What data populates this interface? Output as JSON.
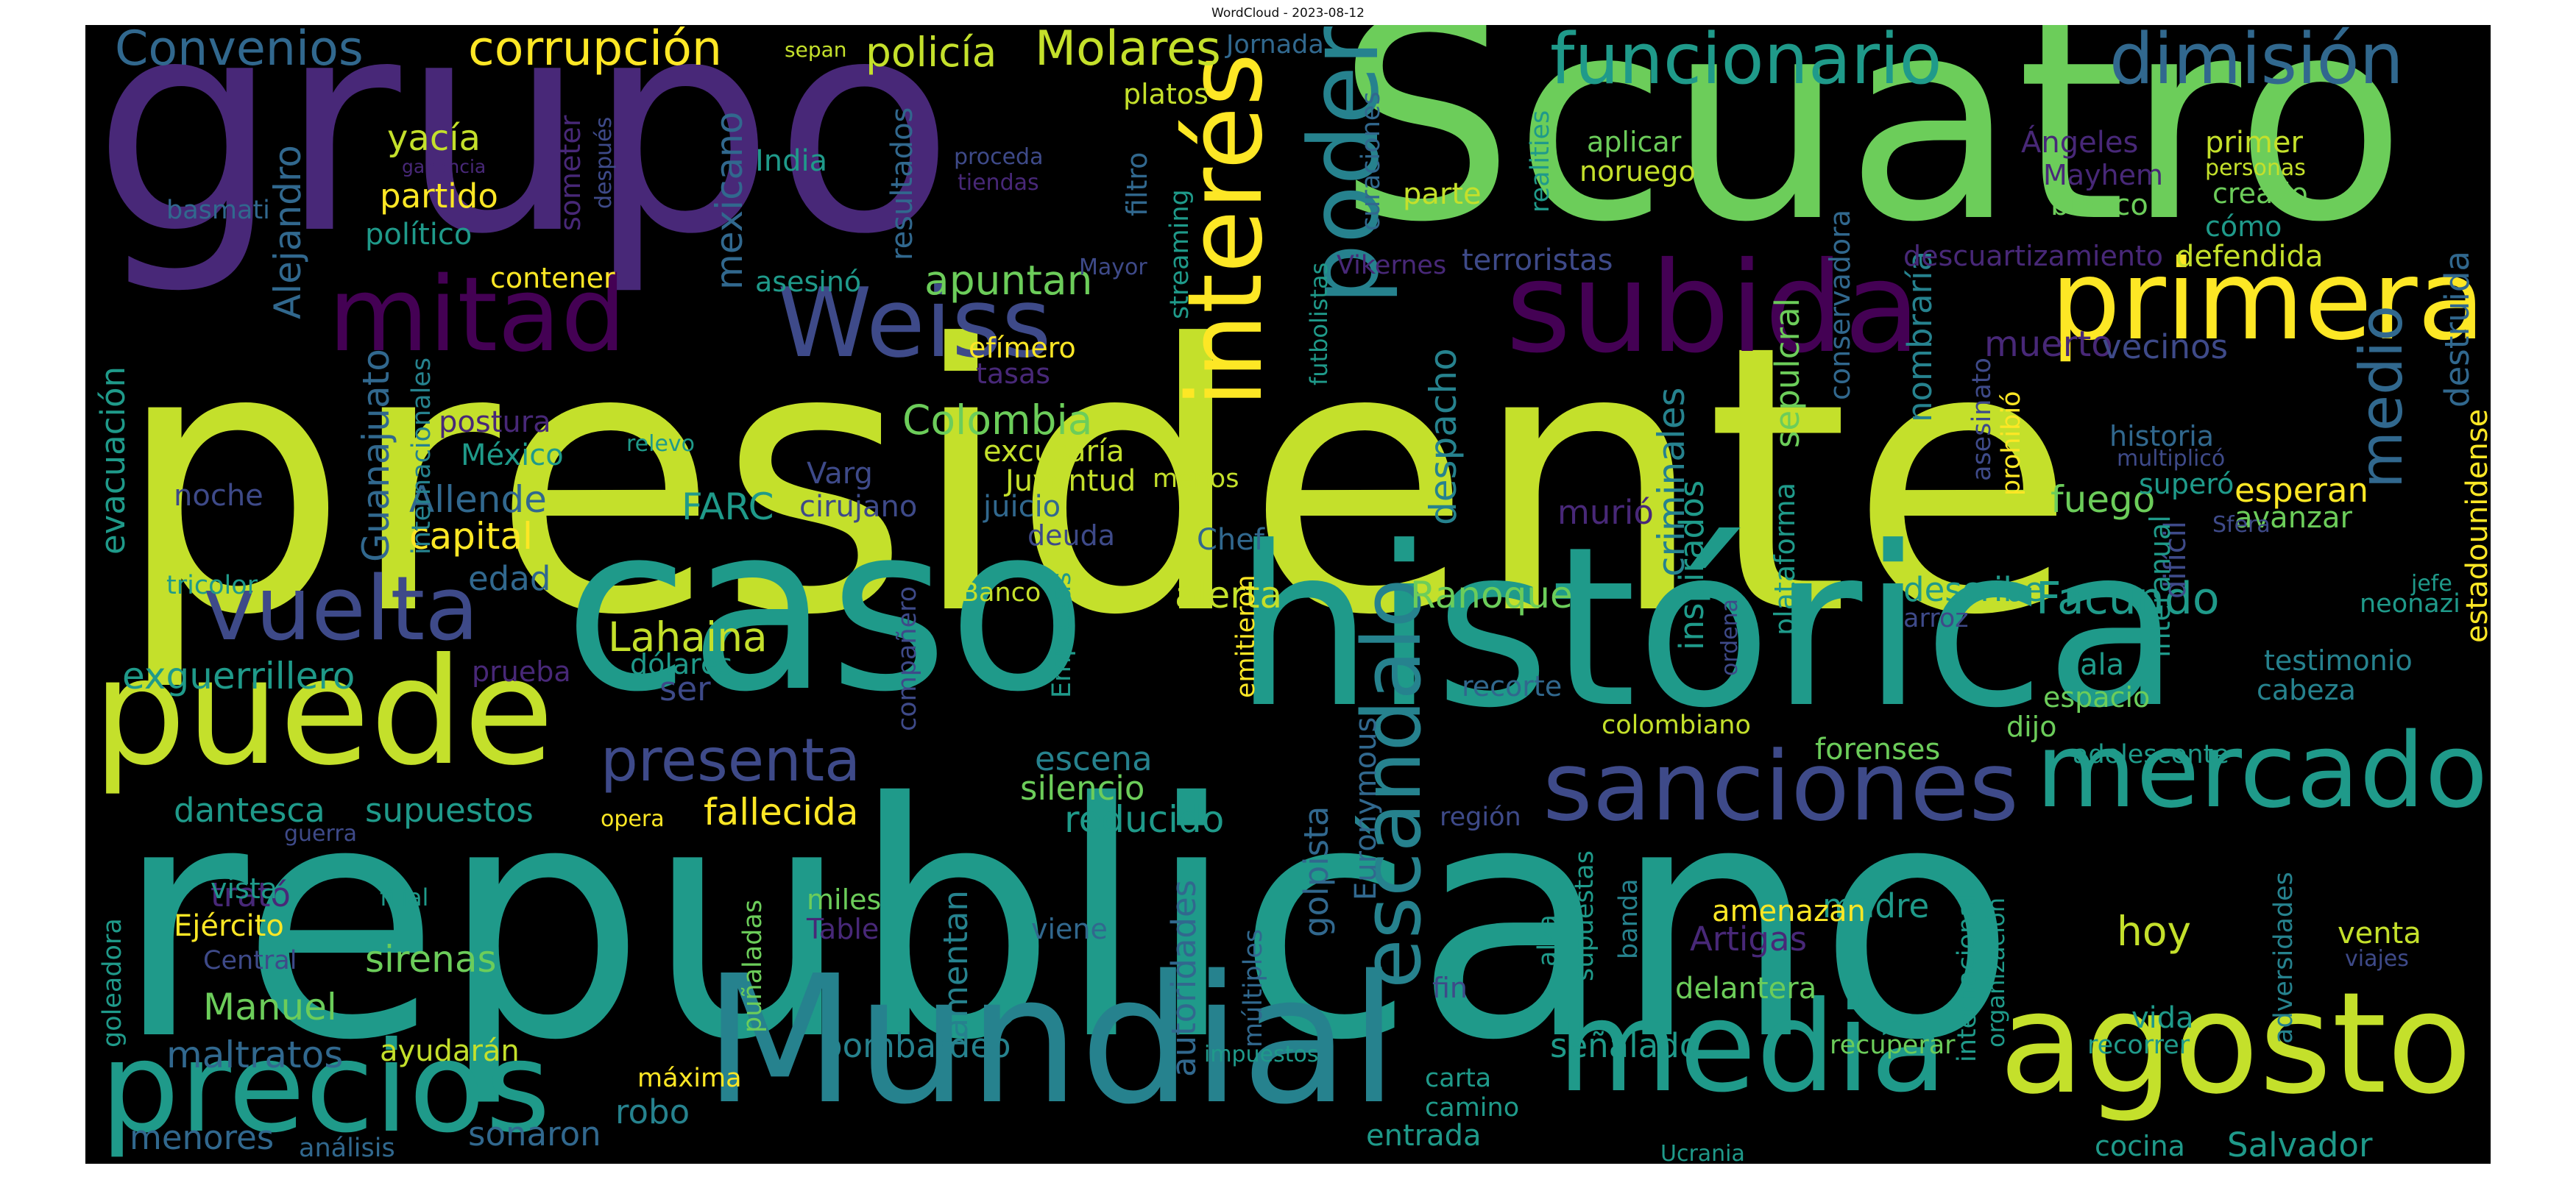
{
  "header": {
    "title": "WordCloud - 2023-08-12"
  },
  "palette": {
    "yellow_green": "#c4e02b",
    "green": "#6ccd5a",
    "teal": "#1f9a8a",
    "blue_teal": "#26828e",
    "blue": "#31688e",
    "indigo": "#3e4a89",
    "purple": "#482878",
    "dark_purple": "#440154",
    "yellow": "#fde725",
    "background": "#000000"
  },
  "words": {
    "presidente": "presidente",
    "republicano": "republicano",
    "grupo": "grupo",
    "scuatro": "Scuatro",
    "caso": "caso",
    "historica": "histórica",
    "mundial": "Mundial",
    "puede": "puede",
    "agosto": "agosto",
    "media": "media",
    "precios": "precios",
    "mitad": "mitad",
    "subida": "subida",
    "primera": "primera",
    "sanciones": "sanciones",
    "mercado": "mercado",
    "interes": "interés",
    "poder": "poder",
    "weiss": "Weiss",
    "vuelta": "vuelta",
    "funcionario": "funcionario",
    "dimision": "dimisión",
    "escandalo": "escándalo",
    "presenta": "presenta",
    "corrupcion": "corrupción",
    "convenios": "Convenios",
    "molares": "Molares",
    "policia": "policía",
    "facundo": "Facundo",
    "lahaina": "Lahaina",
    "medio": "medio",
    "colombia": "Colombia",
    "apuntan": "apuntan",
    "alejandro": "Alejandro",
    "guanajuato": "Guanajuato",
    "despacho": "despacho",
    "criminales": "criminales",
    "ranoque": "Ranoque",
    "alerta": "alerta",
    "mexicano": "mexicano",
    "manuel": "Manuel",
    "sirenas": "sirenas",
    "fallecida": "fallecida",
    "reducido": "reducido",
    "silencio": "silencio",
    "escena": "escena",
    "exguerrillero": "exguerrillero",
    "capital": "capital",
    "allende": "Allende",
    "mexico": "México",
    "postura": "postura",
    "evacuacion": "evacuación",
    "dantesca": "dantesca",
    "supuestos": "supuestos",
    "trato": "trató",
    "ejercito": "Ejército",
    "central": "Central",
    "maltratos": "maltratos",
    "menores": "menores",
    "analisis": "análisis",
    "sonaron": "sonaron",
    "ayudaran": "ayudarán",
    "maxima": "máxima",
    "robo": "robo",
    "bombardeo": "bombardeo",
    "lamentan": "lamentan",
    "autoridades": "autoridades",
    "golpista": "golpista",
    "euronymous": "Euronymous",
    "senalado": "señalado",
    "carta": "carta",
    "camino": "camino",
    "entrada": "entrada",
    "hoy": "hoy",
    "salvador": "Salvador",
    "vida": "vida",
    "recorrer": "recorrer",
    "recuperar": "recuperar",
    "madre": "madre",
    "artigas": "Artigas",
    "amenazan": "amenazan",
    "delantera": "delantera",
    "fuego": "fuego",
    "esperan": "esperan",
    "avanzar": "avanzar",
    "destruida": "destruida",
    "testimonio": "testimonio",
    "cabeza": "cabeza",
    "estadounidense": "estadounidense",
    "neonazi": "neonazi",
    "jefe": "jefe",
    "historia": "historia",
    "multiplico": "multiplicó",
    "supero": "superó",
    "nombraria": "nombraría",
    "asesinato": "asesinato",
    "prohibio": "prohibió",
    "sepulcral": "sepulcral",
    "describe": "describe",
    "arroz": "arroz",
    "dificil": "difícil",
    "interanual": "interanual",
    "espacio": "espacio",
    "ala": "ala",
    "dijo": "dijo",
    "adolescente": "adolescente",
    "forenses": "forenses",
    "colombiano": "colombiano",
    "inspirados": "inspirados",
    "plataforma": "plataforma",
    "ordena": "ordena",
    "recorte": "recorte",
    "murio": "murió",
    "yacia": "yacía",
    "partido": "partido",
    "politico": "político",
    "contener": "contener",
    "basmati": "basmati",
    "ganancia": "ganancia",
    "someter": "someter",
    "despues": "después",
    "india": "India",
    "resultados": "resultados",
    "asesino": "asesinó",
    "proceda": "proceda",
    "tiendas": "tiendas",
    "sepan": "sepan",
    "jornada": "Jornada",
    "platos": "platos",
    "filtro": "filtro",
    "streaming": "streaming",
    "mayor": "Mayor",
    "futbolistas": "futbolistas",
    "curaciones": "curaciones",
    "vikernes": "Vikernes",
    "realities": "realities",
    "parte": "parte",
    "aplicar": "aplicar",
    "noruego": "noruego",
    "terroristas": "terroristas",
    "conservadora": "conservadora",
    "angeles": "Ángeles",
    "mayhem": "Mayhem",
    "blanco": "blanco",
    "primer": "primer",
    "personas": "personas",
    "creado": "creado",
    "como": "cómo",
    "descuartizamiento": "descuartizamiento",
    "defendida": "defendida",
    "muerto": "muerto",
    "vecinos": "vecinos",
    "efimero": "efímero",
    "tasas": "tasas",
    "excusaria": "excusaría",
    "juventud": "Juventud",
    "varg": "Varg",
    "farc": "FARC",
    "cirujano": "cirujano",
    "juicio": "juicio",
    "deuda": "deuda",
    "menos": "menos",
    "chef": "Chef",
    "banco": "Banco",
    "relevo": "relevo",
    "noche": "noche",
    "internacionales": "internacionales",
    "tricolor": "tricolor",
    "edad": "edad",
    "prueba": "prueba",
    "dolares": "dólares",
    "ser": "ser",
    "companero": "compañero",
    "empresas": "Empresas",
    "emitieron": "emitieron",
    "opera": "opera",
    "guerra": "guerra",
    "goleadora": "goleadora",
    "vista": "vista",
    "filial": "filial",
    "miles": "miles",
    "table": "Table",
    "punaladas": "puñaladas",
    "viene": "viene",
    "multiples": "múltiples",
    "impuestos": "impuestos",
    "fin": "fin",
    "region": "región",
    "alza": "alza",
    "supuestas": "supuestas",
    "banda": "banda",
    "internacional": "internacional",
    "organizacion": "organización",
    "adversidades": "adversidades",
    "venta": "venta",
    "viajes": "viajes",
    "cocina": "cocina",
    "ucrania": "Ucrania",
    "sfera": "Sfera"
  }
}
